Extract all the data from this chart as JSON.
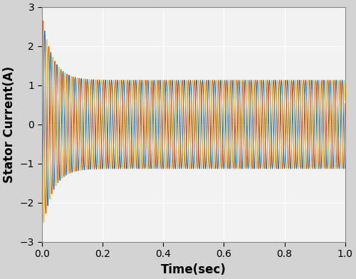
{
  "title": "",
  "xlabel": "Time(sec)",
  "ylabel": "Stator Current(A)",
  "xlim": [
    0,
    1
  ],
  "ylim": [
    -3,
    3
  ],
  "xticks": [
    0,
    0.2,
    0.4,
    0.6,
    0.8,
    1.0
  ],
  "yticks": [
    -3,
    -2,
    -1,
    0,
    1,
    2,
    3
  ],
  "freq_hz": 50,
  "sample_rate": 10000,
  "duration": 1.0,
  "steady_amplitude": 1.13,
  "transient_tau": 0.035,
  "A_init": 2.8,
  "phase_offsets_deg": [
    270,
    30,
    150
  ],
  "line_colors": [
    "#0072BD",
    "#D95319",
    "#EDB120"
  ],
  "line_width": 0.7,
  "bg_color": "#f2f2f2",
  "grid_color": "#ffffff",
  "grid_alpha": 1.0,
  "font_size_label": 12,
  "font_size_tick": 10
}
